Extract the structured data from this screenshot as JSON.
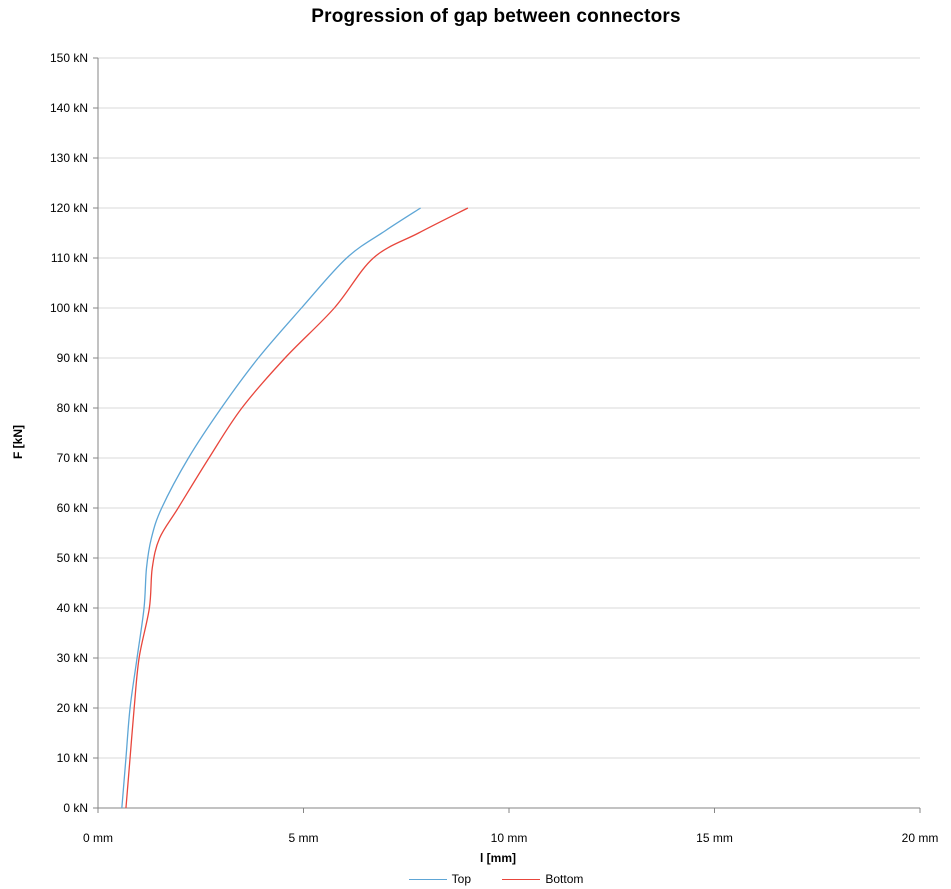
{
  "title": "Progression of gap between connectors",
  "colors": {
    "top": "#5ea6d6",
    "bottom": "#e8463c",
    "grid": "#d9d9d9",
    "axis": "#868686"
  },
  "chart_data": {
    "type": "line",
    "title": "Progression of gap between connectors",
    "xlabel": "l [mm]",
    "ylabel": "F [kN]",
    "xlim": [
      0,
      20
    ],
    "ylim": [
      0,
      150
    ],
    "x_ticks": [
      0,
      5,
      10,
      15,
      20
    ],
    "x_tick_labels": [
      "0 mm",
      "5 mm",
      "10 mm",
      "15 mm",
      "20 mm"
    ],
    "y_ticks": [
      0,
      10,
      20,
      30,
      40,
      50,
      60,
      70,
      80,
      90,
      100,
      110,
      120,
      130,
      140,
      150
    ],
    "y_tick_labels": [
      "0 kN",
      "10 kN",
      "20 kN",
      "30 kN",
      "40 kN",
      "50 kN",
      "60 kN",
      "70 kN",
      "80 kN",
      "90 kN",
      "100 kN",
      "110 kN",
      "120 kN",
      "130 kN",
      "140 kN",
      "150 kN"
    ],
    "grid": "horizontal",
    "legend_position": "bottom",
    "series": [
      {
        "name": "Top",
        "color": "#5ea6d6",
        "points": [
          [
            0.58,
            0
          ],
          [
            0.68,
            10
          ],
          [
            0.78,
            20
          ],
          [
            0.95,
            30
          ],
          [
            1.12,
            40
          ],
          [
            1.18,
            48
          ],
          [
            1.3,
            54
          ],
          [
            1.55,
            60
          ],
          [
            2.2,
            70
          ],
          [
            3.0,
            80
          ],
          [
            3.9,
            90
          ],
          [
            4.95,
            100
          ],
          [
            6.05,
            110
          ],
          [
            7.0,
            115.5
          ],
          [
            7.85,
            120
          ]
        ]
      },
      {
        "name": "Bottom",
        "color": "#e8463c",
        "points": [
          [
            0.68,
            0
          ],
          [
            0.78,
            10
          ],
          [
            0.88,
            20
          ],
          [
            1.0,
            30
          ],
          [
            1.25,
            40
          ],
          [
            1.32,
            48
          ],
          [
            1.5,
            54
          ],
          [
            1.95,
            60
          ],
          [
            2.7,
            70
          ],
          [
            3.5,
            80
          ],
          [
            4.55,
            90
          ],
          [
            5.75,
            100
          ],
          [
            6.7,
            110
          ],
          [
            7.8,
            115
          ],
          [
            9.0,
            120
          ]
        ]
      }
    ]
  }
}
